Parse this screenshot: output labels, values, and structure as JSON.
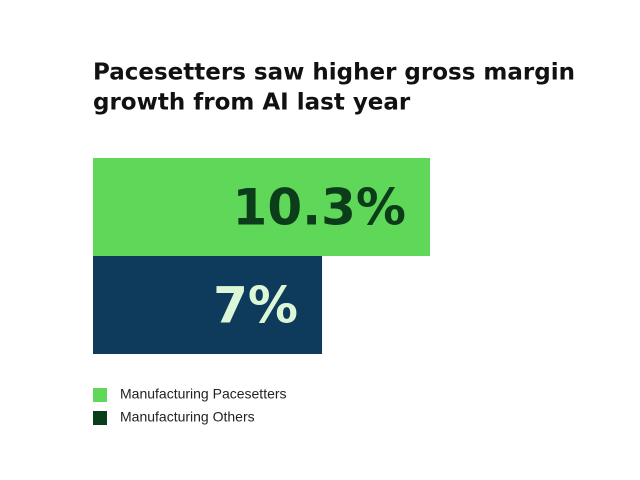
{
  "chart_data": {
    "type": "bar",
    "orientation": "horizontal",
    "title": [
      "Pacesetters saw higher gross margin",
      "growth from AI last year"
    ],
    "series": [
      {
        "name": "Manufacturing Pacesetters",
        "color": "#5fd85a",
        "label_color": "#0b3d1a",
        "legend_color": "#5fd85a",
        "values": [
          10.3
        ],
        "value_labels": [
          "10.3%"
        ]
      },
      {
        "name": "Manufacturing Others",
        "color": "#0e3b5c",
        "label_color": "#dcf7d8",
        "legend_color": "#0b3d1a",
        "values": [
          7
        ],
        "value_labels": [
          "7%"
        ]
      }
    ],
    "legend": "bottom-left"
  }
}
